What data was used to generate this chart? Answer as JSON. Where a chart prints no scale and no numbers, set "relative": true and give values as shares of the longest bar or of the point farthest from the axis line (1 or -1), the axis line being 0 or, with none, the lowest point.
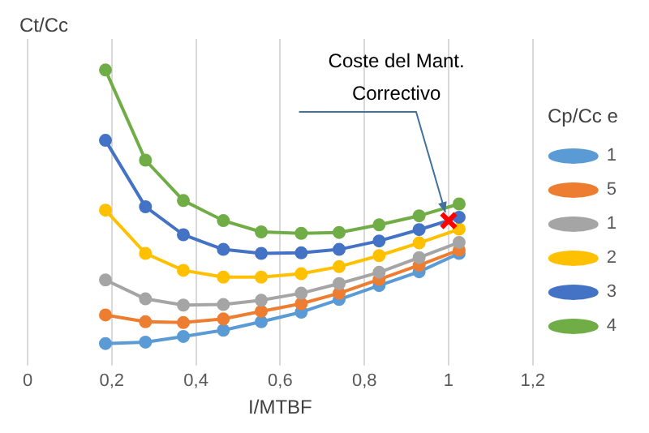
{
  "chart_data": {
    "type": "line",
    "ylabel": "Ct/Cc",
    "xlabel": "I/MTBF",
    "legend_title": "Cp/Cc e",
    "x": [
      0.185,
      0.28,
      0.37,
      0.465,
      0.555,
      0.65,
      0.74,
      0.835,
      0.93,
      1.025
    ],
    "series": [
      {
        "name": "1",
        "color": "#5b9bd5",
        "values": [
          0.032,
          0.037,
          0.057,
          0.079,
          0.109,
          0.143,
          0.188,
          0.237,
          0.286,
          0.351
        ]
      },
      {
        "name": "5",
        "color": "#ed7d31",
        "values": [
          0.133,
          0.109,
          0.106,
          0.119,
          0.146,
          0.173,
          0.21,
          0.259,
          0.309,
          0.363
        ]
      },
      {
        "name": "1",
        "color": "#a5a5a5",
        "values": [
          0.257,
          0.19,
          0.168,
          0.17,
          0.185,
          0.21,
          0.244,
          0.284,
          0.336,
          0.39
        ]
      },
      {
        "name": "2",
        "color": "#ffc000",
        "values": [
          0.504,
          0.351,
          0.291,
          0.267,
          0.267,
          0.279,
          0.304,
          0.343,
          0.388,
          0.437
        ]
      },
      {
        "name": "3",
        "color": "#4472c4",
        "values": [
          0.751,
          0.516,
          0.417,
          0.365,
          0.351,
          0.353,
          0.365,
          0.395,
          0.435,
          0.479
        ]
      },
      {
        "name": "4",
        "color": "#70ad47",
        "values": [
          1,
          0.681,
          0.538,
          0.467,
          0.427,
          0.422,
          0.425,
          0.452,
          0.484,
          0.526
        ]
      },
      {
        "type": "scatter",
        "marker": "cross",
        "color": "#ff0000",
        "x": [
          1
        ],
        "values": [
          0.467
        ]
      }
    ],
    "relative": true,
    "annotations": [
      {
        "text": "Coste del Mant. Correctivo",
        "x": 1,
        "y": 0.467
      }
    ],
    "xlim": [
      0,
      1.2
    ],
    "xticks": [
      {
        "value": 0,
        "label": "0"
      },
      {
        "value": 0.2,
        "label": "0,2"
      },
      {
        "value": 0.4,
        "label": "0,4"
      },
      {
        "value": 0.6,
        "label": "0,6"
      },
      {
        "value": 0.8,
        "label": "0,8"
      },
      {
        "value": 1,
        "label": "1"
      },
      {
        "value": 1.2,
        "label": "1,2"
      }
    ],
    "grid": "x",
    "legend": "right",
    "marker": "circle",
    "line_style": "solid"
  }
}
